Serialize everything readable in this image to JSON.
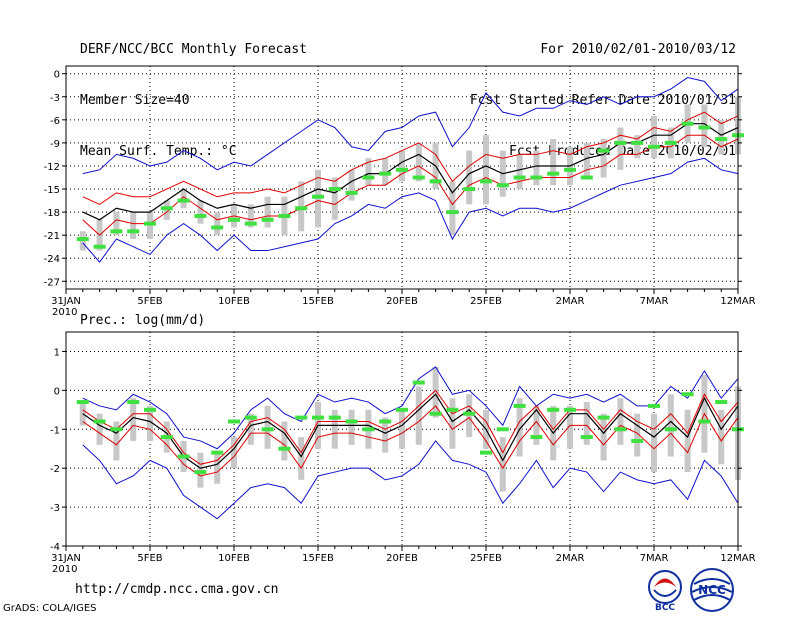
{
  "header": {
    "title": "DERF/NCC/BCC Monthly Forecast",
    "member_size": "Member Size=40",
    "variable": "Mean Surf. Temp.: °C",
    "period": "For 2010/02/01-2010/03/12",
    "start_date": "Fcst Started Refer Date 2010/01/31",
    "produced_date": "Fcst Produced Date 2010/02/01"
  },
  "footer": {
    "url": "http://cmdp.ncc.cma.gov.cn",
    "credit": "GrADS: COLA/IGES",
    "logo_bcc": "BCC",
    "logo_ncc": "NCC"
  },
  "colors": {
    "envelope": "#1010d0",
    "spread": "#e00000",
    "mean": "#000000",
    "box": "#c8c8c8",
    "marker": "#40e040"
  },
  "chart_data": [
    {
      "type": "line",
      "title": "Mean Surf. Temp.: °C",
      "x_tick_labels": [
        "31JAN",
        "5FEB",
        "10FEB",
        "15FEB",
        "20FEB",
        "25FEB",
        "2MAR",
        "7MAR",
        "12MAR"
      ],
      "x_year_label": "2010",
      "x_day_range": [
        0,
        40
      ],
      "x_tick_days": [
        0,
        5,
        10,
        15,
        20,
        25,
        30,
        35,
        40
      ],
      "ylim": [
        -28,
        1
      ],
      "yticks": [
        0,
        -3,
        -6,
        -9,
        -12,
        -15,
        -18,
        -21,
        -24,
        -27
      ],
      "ytick_labels": [
        "0",
        "-3",
        "-6",
        "-9",
        "-12",
        "-15",
        "-18",
        "-21",
        "-24",
        "-27"
      ],
      "days": [
        1,
        2,
        3,
        4,
        5,
        6,
        7,
        8,
        9,
        10,
        11,
        12,
        13,
        14,
        15,
        16,
        17,
        18,
        19,
        20,
        21,
        22,
        23,
        24,
        25,
        26,
        27,
        28,
        29,
        30,
        31,
        32,
        33,
        34,
        35,
        36,
        37,
        38,
        39,
        40
      ],
      "series": [
        {
          "name": "max",
          "values": [
            -13,
            -12.5,
            -10.5,
            -11,
            -12,
            -11.5,
            -10,
            -11,
            -12.5,
            -11.5,
            -12,
            -10.5,
            -9,
            -7.5,
            -6,
            -7,
            -9.5,
            -10,
            -7.5,
            -7,
            -5.5,
            -5,
            -9.5,
            -7,
            -2.5,
            -5,
            -5.5,
            -4.5,
            -4.5,
            -3.5,
            -4,
            -3,
            -4,
            -3,
            -3,
            -2,
            -0.5,
            -1,
            -3.5,
            -2
          ]
        },
        {
          "name": "upper",
          "values": [
            -16,
            -17,
            -15.5,
            -16,
            -16,
            -15,
            -14,
            -15,
            -16,
            -15.5,
            -15.5,
            -15,
            -15.5,
            -14.5,
            -13.5,
            -14,
            -12.5,
            -11.5,
            -11,
            -10,
            -9,
            -10.5,
            -14,
            -12,
            -10.5,
            -11,
            -10.5,
            -10.5,
            -10,
            -10.5,
            -9.5,
            -9,
            -8,
            -8.5,
            -7,
            -7.5,
            -6,
            -5,
            -6.5,
            -5.5
          ]
        },
        {
          "name": "mean",
          "values": [
            -18,
            -19,
            -17.5,
            -18,
            -18,
            -16.5,
            -15,
            -16.5,
            -17.5,
            -17,
            -17.5,
            -17,
            -17,
            -16,
            -15,
            -15.5,
            -14,
            -13,
            -13,
            -11.5,
            -10.5,
            -12,
            -15.5,
            -13,
            -12,
            -13,
            -12.5,
            -12,
            -12,
            -12,
            -11,
            -10.5,
            -9,
            -9,
            -8,
            -8,
            -6.5,
            -6.5,
            -8,
            -7
          ]
        },
        {
          "name": "lower",
          "values": [
            -19,
            -21,
            -19,
            -19.5,
            -19.5,
            -18,
            -16,
            -17.5,
            -19,
            -18.5,
            -19,
            -18.5,
            -18.5,
            -17.5,
            -16.5,
            -17,
            -15.5,
            -14.5,
            -14.5,
            -13,
            -12,
            -13.5,
            -17,
            -14.5,
            -13.5,
            -14.5,
            -14,
            -13.5,
            -13.5,
            -13.5,
            -12.5,
            -12,
            -10.5,
            -10.5,
            -9.5,
            -9.5,
            -8,
            -8,
            -9.5,
            -8.5
          ]
        },
        {
          "name": "min",
          "values": [
            -22,
            -24.5,
            -21.5,
            -22.5,
            -23.5,
            -21,
            -19.5,
            -21,
            -23,
            -21,
            -23,
            -23,
            -22.5,
            -22,
            -21.5,
            -19.5,
            -18.5,
            -17,
            -17.5,
            -16,
            -15.5,
            -16.5,
            -21.5,
            -18,
            -17.5,
            -18.5,
            -17.5,
            -17.5,
            -18,
            -17.5,
            -16.5,
            -15.5,
            -14.5,
            -14,
            -13.5,
            -13,
            -11.5,
            -11,
            -12.5,
            -13
          ]
        },
        {
          "name": "box_top",
          "values": [
            -20.5,
            -19,
            -18,
            -18,
            -18,
            -16.5,
            -15,
            -16.5,
            -18,
            -17,
            -17,
            -16,
            -16,
            -14,
            -12.5,
            -13.5,
            -12.5,
            -11,
            -11,
            -10,
            -9,
            -9,
            -14,
            -10,
            -8,
            -10,
            -10.5,
            -10,
            -8.5,
            -9.5,
            -9,
            -8.5,
            -7,
            -8,
            -5.5,
            -7,
            -4,
            -4,
            -6,
            -3
          ]
        },
        {
          "name": "box_bottom",
          "values": [
            -23,
            -23,
            -21,
            -21.5,
            -21.5,
            -19,
            -17.5,
            -19.5,
            -21,
            -20,
            -20,
            -20,
            -21,
            -20.5,
            -20,
            -19,
            -16.5,
            -14.5,
            -14.5,
            -14,
            -14,
            -15,
            -21,
            -17,
            -17,
            -16,
            -15,
            -14.5,
            -14.5,
            -14.5,
            -13.5,
            -13.5,
            -12.5,
            -11,
            -11,
            -11,
            -9,
            -9.5,
            -10.5,
            -10.5
          ]
        },
        {
          "name": "marker",
          "values": [
            -21.5,
            -22.5,
            -20.5,
            -20.5,
            -19.5,
            -17.5,
            -16.5,
            -18.5,
            -20,
            -19,
            -19.5,
            -19,
            -18.5,
            -17.5,
            -16,
            -15,
            -15.5,
            -13.5,
            -13,
            -12.5,
            -13.5,
            -14,
            -18,
            -15,
            -14,
            -14.5,
            -13.5,
            -13.5,
            -13,
            -12.5,
            -13.5,
            -10,
            -9,
            -9,
            -9.5,
            -9,
            -6.5,
            -7,
            -8.5,
            -8
          ]
        }
      ]
    },
    {
      "type": "line",
      "title": "Prec.: log(mm/d)",
      "x_tick_labels": [
        "31JAN",
        "5FEB",
        "10FEB",
        "15FEB",
        "20FEB",
        "25FEB",
        "2MAR",
        "7MAR",
        "12MAR"
      ],
      "x_year_label": "2010",
      "x_day_range": [
        0,
        40
      ],
      "x_tick_days": [
        0,
        5,
        10,
        15,
        20,
        25,
        30,
        35,
        40
      ],
      "ylim": [
        -4,
        1.5
      ],
      "yticks": [
        1,
        0,
        -1,
        -2,
        -3,
        -4
      ],
      "ytick_labels": [
        "1",
        "0",
        "-1",
        "-2",
        "-3",
        "-4"
      ],
      "days": [
        1,
        2,
        3,
        4,
        5,
        6,
        7,
        8,
        9,
        10,
        11,
        12,
        13,
        14,
        15,
        16,
        17,
        18,
        19,
        20,
        21,
        22,
        23,
        24,
        25,
        26,
        27,
        28,
        29,
        30,
        31,
        32,
        33,
        34,
        35,
        36,
        37,
        38,
        39,
        40
      ],
      "series": [
        {
          "name": "max",
          "values": [
            -0.2,
            -0.4,
            -0.5,
            -0.1,
            -0.3,
            -0.6,
            -1.2,
            -1.3,
            -1.5,
            -1.1,
            -0.5,
            -0.2,
            -0.6,
            -0.8,
            -0.1,
            -0.3,
            -0.2,
            -0.3,
            -0.6,
            -0.4,
            0.3,
            0.6,
            -0.1,
            0.0,
            -0.4,
            -0.9,
            0.1,
            -0.4,
            -0.1,
            -0.2,
            -0.1,
            -0.3,
            -0.1,
            -0.4,
            -0.4,
            0.1,
            -0.2,
            0.5,
            -0.2,
            0.3
          ]
        },
        {
          "name": "upper",
          "values": [
            -0.5,
            -0.8,
            -1.0,
            -0.6,
            -0.6,
            -1.0,
            -1.6,
            -1.9,
            -1.8,
            -1.4,
            -0.8,
            -0.7,
            -1.0,
            -1.6,
            -0.8,
            -0.8,
            -0.8,
            -0.8,
            -1.0,
            -0.8,
            -0.4,
            0.0,
            -0.6,
            -0.4,
            -0.8,
            -1.6,
            -0.8,
            -0.4,
            -1.0,
            -0.5,
            -0.5,
            -1.0,
            -0.5,
            -0.8,
            -1.0,
            -0.6,
            -1.1,
            -0.1,
            -0.8,
            -0.3
          ]
        },
        {
          "name": "mean",
          "values": [
            -0.6,
            -0.9,
            -1.1,
            -0.7,
            -0.8,
            -1.1,
            -1.7,
            -2.0,
            -1.9,
            -1.5,
            -0.9,
            -0.8,
            -1.1,
            -1.7,
            -0.9,
            -0.9,
            -0.9,
            -0.9,
            -1.1,
            -0.9,
            -0.5,
            -0.1,
            -0.8,
            -0.5,
            -1.0,
            -1.8,
            -1.0,
            -0.5,
            -1.1,
            -0.6,
            -0.6,
            -1.1,
            -0.6,
            -0.9,
            -1.2,
            -0.8,
            -1.2,
            -0.2,
            -1.0,
            -0.4
          ]
        },
        {
          "name": "lower",
          "values": [
            -0.8,
            -1.1,
            -1.4,
            -0.9,
            -1.0,
            -1.4,
            -1.9,
            -2.2,
            -2.1,
            -1.7,
            -1.1,
            -1.1,
            -1.4,
            -2.0,
            -1.2,
            -1.1,
            -1.1,
            -1.2,
            -1.3,
            -1.1,
            -0.8,
            -0.4,
            -1.0,
            -0.7,
            -1.3,
            -2.0,
            -1.3,
            -0.8,
            -1.4,
            -0.9,
            -0.9,
            -1.4,
            -0.9,
            -1.1,
            -1.5,
            -1.1,
            -1.6,
            -0.6,
            -1.3,
            -0.7
          ]
        },
        {
          "name": "min",
          "values": [
            -1.4,
            -1.8,
            -2.4,
            -2.2,
            -1.8,
            -2.0,
            -2.7,
            -3.0,
            -3.3,
            -2.9,
            -2.5,
            -2.4,
            -2.5,
            -2.9,
            -2.2,
            -2.1,
            -2.0,
            -2.0,
            -2.3,
            -2.2,
            -1.9,
            -1.3,
            -1.8,
            -1.9,
            -2.1,
            -2.9,
            -2.4,
            -1.8,
            -2.5,
            -2.0,
            -2.1,
            -2.6,
            -2.1,
            -2.3,
            -2.4,
            -2.3,
            -2.8,
            -1.8,
            -2.2,
            -2.9
          ]
        },
        {
          "name": "box_top",
          "values": [
            -0.3,
            -0.6,
            -0.8,
            -0.2,
            -0.4,
            -0.8,
            -1.3,
            -1.6,
            -1.6,
            -1.2,
            -0.6,
            -0.4,
            -0.8,
            -1.2,
            -0.3,
            -0.5,
            -0.5,
            -0.5,
            -0.7,
            -0.5,
            0.1,
            0.6,
            -0.2,
            -0.1,
            -0.5,
            -1.2,
            -0.2,
            -0.4,
            -0.4,
            -0.4,
            -0.3,
            -0.6,
            -0.2,
            -0.6,
            -0.6,
            -0.1,
            -0.5,
            0.4,
            -0.5,
            0.1
          ]
        },
        {
          "name": "box_bottom",
          "values": [
            -0.9,
            -1.4,
            -1.8,
            -1.3,
            -1.3,
            -1.6,
            -2.1,
            -2.5,
            -2.4,
            -2.0,
            -1.4,
            -1.5,
            -1.8,
            -2.3,
            -1.5,
            -1.5,
            -1.4,
            -1.5,
            -1.6,
            -1.5,
            -1.4,
            -0.7,
            -1.5,
            -1.2,
            -1.5,
            -2.6,
            -1.7,
            -1.4,
            -1.8,
            -1.5,
            -1.4,
            -1.8,
            -1.4,
            -1.7,
            -2.1,
            -1.7,
            -2.1,
            -1.6,
            -1.9,
            -2.3
          ]
        },
        {
          "name": "marker",
          "values": [
            -0.3,
            -0.8,
            -1.0,
            -0.3,
            -0.5,
            -1.2,
            -1.7,
            -2.1,
            -1.6,
            -0.8,
            -0.7,
            -1.0,
            -1.5,
            -0.7,
            -0.7,
            -0.7,
            -0.8,
            -1.0,
            -0.8,
            -0.5,
            0.2,
            -0.6,
            -0.5,
            -0.6,
            -1.6,
            -1.0,
            -0.4,
            -1.2,
            -0.5,
            -0.5,
            -1.2,
            -0.7,
            -1.0,
            -1.3,
            -0.4,
            -1.0,
            -0.1,
            -0.8,
            -0.3,
            -1.0
          ]
        }
      ]
    }
  ]
}
